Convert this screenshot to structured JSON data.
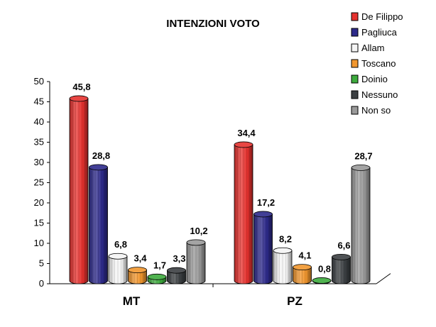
{
  "chart_data": {
    "type": "bar",
    "title": "INTENZIONI VOTO",
    "categories": [
      "MT",
      "PZ"
    ],
    "ylim": [
      0,
      50
    ],
    "yticks": [
      "0",
      "5",
      "10",
      "15",
      "20",
      "25",
      "30",
      "35",
      "40",
      "45",
      "50"
    ],
    "grid": false,
    "legend_position": "top-right",
    "series": [
      {
        "name": "De Filippo",
        "values": [
          45.8,
          34.4
        ],
        "labels": [
          "45,8",
          "34,4"
        ],
        "color": "#e5312e"
      },
      {
        "name": "Pagliuca",
        "values": [
          28.8,
          17.2
        ],
        "labels": [
          "28,8",
          "17,2"
        ],
        "color": "#2d2a8a"
      },
      {
        "name": "Allam",
        "values": [
          6.8,
          8.2
        ],
        "labels": [
          "6,8",
          "8,2"
        ],
        "color": "#f4f4f4"
      },
      {
        "name": "Toscano",
        "values": [
          3.4,
          4.1
        ],
        "labels": [
          "3,4",
          "4,1"
        ],
        "color": "#f0962e"
      },
      {
        "name": "Doinio",
        "values": [
          1.7,
          0.8
        ],
        "labels": [
          "1,7",
          "0,8"
        ],
        "color": "#3dab3d"
      },
      {
        "name": "Nessuno",
        "values": [
          3.3,
          6.6
        ],
        "labels": [
          "3,3",
          "6,6"
        ],
        "color": "#3b3f42"
      },
      {
        "name": "Non so",
        "values": [
          10.2,
          28.7
        ],
        "labels": [
          "10,2",
          "28,7"
        ],
        "color": "#9a9a9a"
      }
    ]
  }
}
